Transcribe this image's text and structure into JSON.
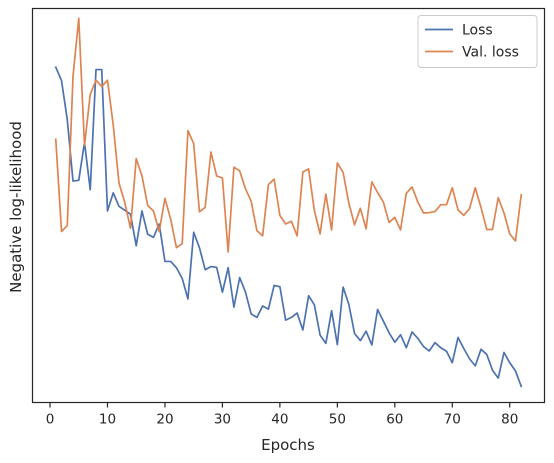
{
  "chart_data": {
    "type": "line",
    "xlabel": "Epochs",
    "ylabel": "Negative log-likelihood",
    "xlim": [
      -3.05,
      86.05
    ],
    "ylim": [
      0,
      1
    ],
    "xticks": [
      0,
      10,
      20,
      30,
      40,
      50,
      60,
      70,
      80
    ],
    "y_tick_labels_shown": false,
    "grid": false,
    "legend_position": "top-right",
    "x": [
      1,
      2,
      3,
      4,
      5,
      6,
      7,
      8,
      9,
      10,
      11,
      12,
      13,
      14,
      15,
      16,
      17,
      18,
      19,
      20,
      21,
      22,
      23,
      24,
      25,
      26,
      27,
      28,
      29,
      30,
      31,
      32,
      33,
      34,
      35,
      36,
      37,
      38,
      39,
      40,
      41,
      42,
      43,
      44,
      45,
      46,
      47,
      48,
      49,
      50,
      51,
      52,
      53,
      54,
      55,
      56,
      57,
      58,
      59,
      60,
      61,
      62,
      63,
      64,
      65,
      66,
      67,
      68,
      69,
      70,
      71,
      72,
      73,
      74,
      75,
      76,
      77,
      78,
      79,
      80,
      81,
      82
    ],
    "series": [
      {
        "name": "Loss",
        "color": "#4c72b0",
        "values": [
          0.851,
          0.817,
          0.718,
          0.562,
          0.564,
          0.66,
          0.54,
          0.845,
          0.845,
          0.486,
          0.532,
          0.498,
          0.488,
          0.478,
          0.398,
          0.486,
          0.427,
          0.419,
          0.453,
          0.358,
          0.358,
          0.342,
          0.315,
          0.263,
          0.432,
          0.393,
          0.337,
          0.345,
          0.343,
          0.28,
          0.342,
          0.242,
          0.317,
          0.281,
          0.225,
          0.216,
          0.245,
          0.237,
          0.297,
          0.294,
          0.209,
          0.216,
          0.227,
          0.184,
          0.271,
          0.248,
          0.171,
          0.15,
          0.233,
          0.147,
          0.293,
          0.249,
          0.175,
          0.157,
          0.181,
          0.146,
          0.236,
          0.207,
          0.177,
          0.153,
          0.172,
          0.139,
          0.179,
          0.163,
          0.142,
          0.131,
          0.152,
          0.139,
          0.13,
          0.101,
          0.165,
          0.137,
          0.111,
          0.093,
          0.135,
          0.122,
          0.082,
          0.062,
          0.127,
          0.101,
          0.08,
          0.041
        ]
      },
      {
        "name": "Val. loss",
        "color": "#dd8452",
        "values": [
          0.668,
          0.434,
          0.449,
          0.828,
          0.975,
          0.652,
          0.782,
          0.818,
          0.802,
          0.818,
          0.704,
          0.557,
          0.508,
          0.442,
          0.619,
          0.575,
          0.5,
          0.486,
          0.434,
          0.518,
          0.465,
          0.393,
          0.403,
          0.69,
          0.657,
          0.484,
          0.495,
          0.636,
          0.575,
          0.57,
          0.382,
          0.597,
          0.588,
          0.543,
          0.511,
          0.436,
          0.423,
          0.553,
          0.567,
          0.475,
          0.453,
          0.46,
          0.423,
          0.585,
          0.593,
          0.487,
          0.428,
          0.529,
          0.438,
          0.608,
          0.584,
          0.506,
          0.451,
          0.493,
          0.441,
          0.56,
          0.533,
          0.509,
          0.457,
          0.47,
          0.438,
          0.531,
          0.547,
          0.509,
          0.481,
          0.482,
          0.485,
          0.502,
          0.502,
          0.545,
          0.489,
          0.475,
          0.492,
          0.545,
          0.495,
          0.439,
          0.439,
          0.52,
          0.481,
          0.428,
          0.41,
          0.527
        ]
      }
    ]
  }
}
